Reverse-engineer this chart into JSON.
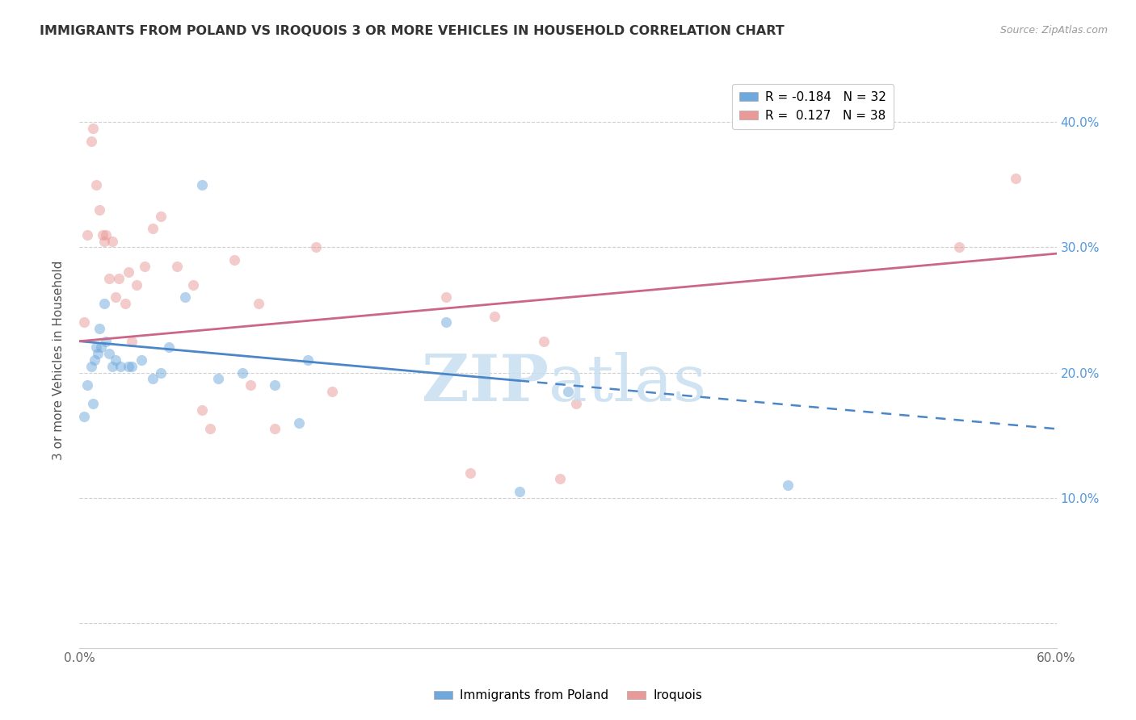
{
  "title": "IMMIGRANTS FROM POLAND VS IROQUOIS 3 OR MORE VEHICLES IN HOUSEHOLD CORRELATION CHART",
  "source": "Source: ZipAtlas.com",
  "ylabel": "3 or more Vehicles in Household",
  "xmin": 0.0,
  "xmax": 60.0,
  "ymin": -2.0,
  "ymax": 44.0,
  "ytick_positions": [
    0,
    10,
    20,
    30,
    40
  ],
  "ytick_labels": [
    "",
    "10.0%",
    "20.0%",
    "30.0%",
    "40.0%"
  ],
  "xtick_positions": [
    0,
    12,
    24,
    36,
    48,
    60
  ],
  "xtick_labels": [
    "0.0%",
    "",
    "",
    "",
    "",
    "60.0%"
  ],
  "blue_scatter_x": [
    0.3,
    0.5,
    0.7,
    0.8,
    0.9,
    1.0,
    1.1,
    1.2,
    1.3,
    1.5,
    1.6,
    1.8,
    2.0,
    2.2,
    2.5,
    3.0,
    3.2,
    3.8,
    4.5,
    5.0,
    5.5,
    6.5,
    7.5,
    8.5,
    10.0,
    12.0,
    13.5,
    14.0,
    22.5,
    27.0,
    30.0,
    43.5
  ],
  "blue_scatter_y": [
    16.5,
    19.0,
    20.5,
    17.5,
    21.0,
    22.0,
    21.5,
    23.5,
    22.0,
    25.5,
    22.5,
    21.5,
    20.5,
    21.0,
    20.5,
    20.5,
    20.5,
    21.0,
    19.5,
    20.0,
    22.0,
    26.0,
    35.0,
    19.5,
    20.0,
    19.0,
    16.0,
    21.0,
    24.0,
    10.5,
    18.5,
    11.0
  ],
  "pink_scatter_x": [
    0.3,
    0.5,
    0.7,
    0.8,
    1.0,
    1.2,
    1.4,
    1.5,
    1.6,
    1.8,
    2.0,
    2.2,
    2.4,
    2.8,
    3.0,
    3.2,
    3.5,
    4.0,
    4.5,
    5.0,
    6.0,
    7.0,
    7.5,
    8.0,
    9.5,
    10.5,
    11.0,
    12.0,
    14.5,
    15.5,
    22.5,
    24.0,
    25.5,
    28.5,
    29.5,
    30.5,
    54.0,
    57.5
  ],
  "pink_scatter_y": [
    24.0,
    31.0,
    38.5,
    39.5,
    35.0,
    33.0,
    31.0,
    30.5,
    31.0,
    27.5,
    30.5,
    26.0,
    27.5,
    25.5,
    28.0,
    22.5,
    27.0,
    28.5,
    31.5,
    32.5,
    28.5,
    27.0,
    17.0,
    15.5,
    29.0,
    19.0,
    25.5,
    15.5,
    30.0,
    18.5,
    26.0,
    12.0,
    24.5,
    22.5,
    11.5,
    17.5,
    30.0,
    35.5
  ],
  "blue_line_x0": 0.0,
  "blue_line_x1": 60.0,
  "blue_line_y0": 22.5,
  "blue_line_y1": 15.5,
  "blue_solid_end_x": 27.0,
  "blue_line_color": "#4a86c8",
  "pink_line_x0": 0.0,
  "pink_line_x1": 60.0,
  "pink_line_y0": 22.5,
  "pink_line_y1": 29.5,
  "pink_line_color": "#cc6688",
  "scatter_size": 90,
  "scatter_alpha": 0.5,
  "scatter_blue_color": "#6fa8dc",
  "scatter_pink_color": "#ea9999",
  "legend1_r": "-0.184",
  "legend1_n": "32",
  "legend2_r": "0.127",
  "legend2_n": "38",
  "watermark_zip_color": "#c8dff0",
  "watermark_atlas_color": "#c8dff0"
}
